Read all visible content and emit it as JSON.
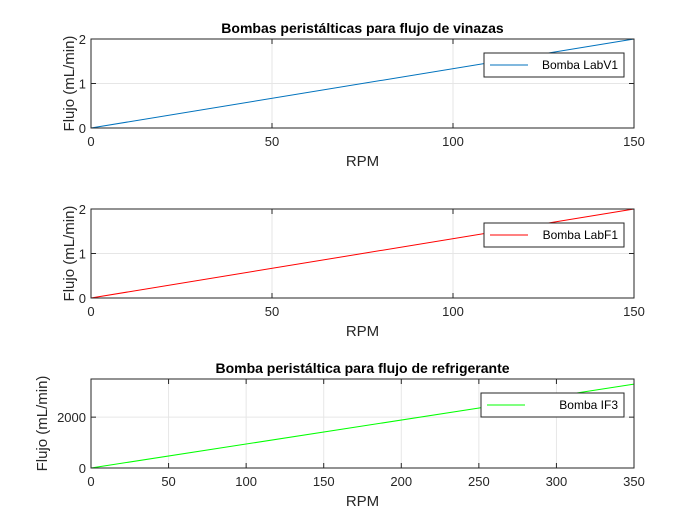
{
  "chart_data": [
    {
      "type": "line",
      "title": "Bombas peristálticas para flujo de vinazas",
      "xlabel": "RPM",
      "ylabel": "Flujo (mL/min)",
      "xlim": [
        0,
        150
      ],
      "ylim": [
        0,
        2
      ],
      "xticks": [
        0,
        50,
        100,
        150
      ],
      "yticks": [
        0,
        1,
        2
      ],
      "grid": true,
      "legend_position": "top-right",
      "series": [
        {
          "name": "Bomba LabV1",
          "color": "#0072BD",
          "x": [
            0,
            150
          ],
          "y": [
            0,
            2
          ]
        }
      ]
    },
    {
      "type": "line",
      "title": "",
      "xlabel": "RPM",
      "ylabel": "Flujo (mL/min)",
      "xlim": [
        0,
        150
      ],
      "ylim": [
        0,
        2
      ],
      "xticks": [
        0,
        50,
        100,
        150
      ],
      "yticks": [
        0,
        1,
        2
      ],
      "grid": true,
      "legend_position": "top-right",
      "series": [
        {
          "name": "Bomba LabF1",
          "color": "#FF0000",
          "x": [
            0,
            150
          ],
          "y": [
            0,
            2
          ]
        }
      ]
    },
    {
      "type": "line",
      "title": "Bomba peristáltica para flujo de refrigerante",
      "xlabel": "RPM",
      "ylabel": "Flujo (mL/min)",
      "xlim": [
        0,
        350
      ],
      "ylim": [
        0,
        3500
      ],
      "xticks": [
        0,
        50,
        100,
        150,
        200,
        250,
        300,
        350
      ],
      "yticks": [
        0,
        2000
      ],
      "grid": true,
      "legend_position": "top-right",
      "series": [
        {
          "name": "Bomba IF3",
          "color": "#00FF00",
          "x": [
            0,
            350
          ],
          "y": [
            0,
            3300
          ]
        }
      ]
    }
  ]
}
